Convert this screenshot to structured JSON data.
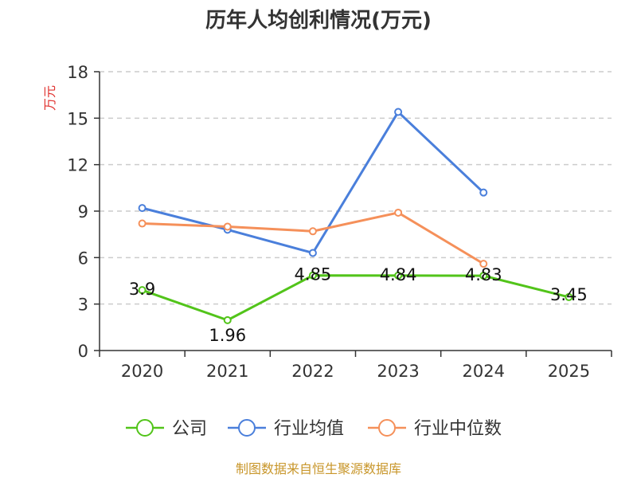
{
  "chart_data": {
    "type": "line",
    "title": "历年人均创利情况(万元)",
    "ylabel": "万元",
    "categories": [
      "2020",
      "2021",
      "2022",
      "2023",
      "2024",
      "2025"
    ],
    "ylim": [
      0,
      18
    ],
    "yticks": [
      0,
      3,
      6,
      9,
      12,
      15,
      18
    ],
    "grid": true,
    "legend_position": "bottom",
    "series": [
      {
        "name": "公司",
        "color": "#52c41a",
        "values": [
          3.9,
          1.96,
          4.85,
          4.84,
          4.83,
          3.45
        ],
        "labels": [
          "3.9",
          "1.96",
          "4.85",
          "4.84",
          "4.83",
          "3.45"
        ]
      },
      {
        "name": "行业均值",
        "color": "#4a7fdb",
        "values": [
          9.2,
          7.8,
          6.3,
          15.4,
          10.2,
          null
        ]
      },
      {
        "name": "行业中位数",
        "color": "#f5905a",
        "values": [
          8.2,
          8.0,
          7.7,
          8.9,
          5.6,
          null
        ]
      }
    ]
  },
  "source_text": "制图数据来自恒生聚源数据库"
}
